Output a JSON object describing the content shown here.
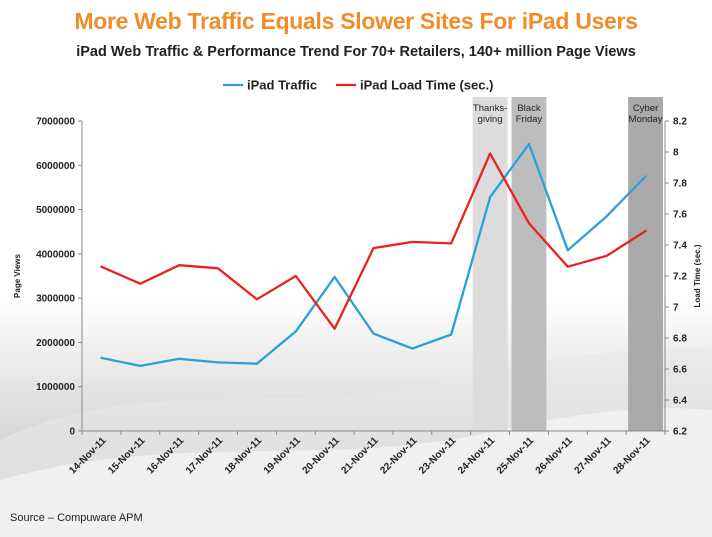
{
  "title": "More Web Traffic Equals Slower Sites For iPad Users",
  "subtitle": "iPad Web Traffic & Performance Trend For 70+ Retailers, 140+ million Page Views",
  "source": "Source – Compuware APM",
  "colors": {
    "title": "#f28c28",
    "traffic": "#2aa0d8",
    "load_time": "#e8231f"
  },
  "chart_data": {
    "type": "line",
    "categories": [
      "14-Nov-11",
      "15-Nov-11",
      "16-Nov-11",
      "17-Nov-11",
      "18-Nov-11",
      "19-Nov-11",
      "20-Nov-11",
      "21-Nov-11",
      "22-Nov-11",
      "23-Nov-11",
      "24-Nov-11",
      "25-Nov-11",
      "26-Nov-11",
      "27-Nov-11",
      "28-Nov-11"
    ],
    "series": [
      {
        "name": "iPad Traffic",
        "axis": "left",
        "color": "#2aa0d8",
        "values": [
          1650000,
          1470000,
          1630000,
          1550000,
          1520000,
          2250000,
          3480000,
          2200000,
          1860000,
          2180000,
          5280000,
          6480000,
          4080000,
          4850000,
          5750000
        ]
      },
      {
        "name": "iPad Load Time (sec.)",
        "axis": "right",
        "color": "#e8231f",
        "values": [
          7.26,
          7.15,
          7.27,
          7.25,
          7.05,
          7.2,
          6.86,
          7.38,
          7.42,
          7.41,
          7.99,
          7.54,
          7.26,
          7.33,
          7.49
        ]
      }
    ],
    "ylabel": "Page Views",
    "ylabel_right": "Load Time (sec.)",
    "ylim": [
      0,
      7000000
    ],
    "yticks": [
      "0",
      "1000000",
      "2000000",
      "3000000",
      "4000000",
      "5000000",
      "6000000",
      "7000000"
    ],
    "ylim_right": [
      6.2,
      8.2
    ],
    "yticks_right": [
      "6.2",
      "6.4",
      "6.6",
      "6.8",
      "7",
      "7.2",
      "7.4",
      "7.6",
      "7.8",
      "8",
      "8.2"
    ],
    "grid": false,
    "legend": "top-center",
    "highlights": [
      {
        "label_lines": [
          "Thanks-",
          "giving"
        ],
        "category": "24-Nov-11",
        "shade": "#dcdcdc"
      },
      {
        "label_lines": [
          "Black",
          "Friday"
        ],
        "category": "25-Nov-11",
        "shade": "#bdbdbd"
      },
      {
        "label_lines": [
          "Cyber",
          "Monday"
        ],
        "category": "28-Nov-11",
        "shade": "#a9a9a9"
      }
    ]
  }
}
